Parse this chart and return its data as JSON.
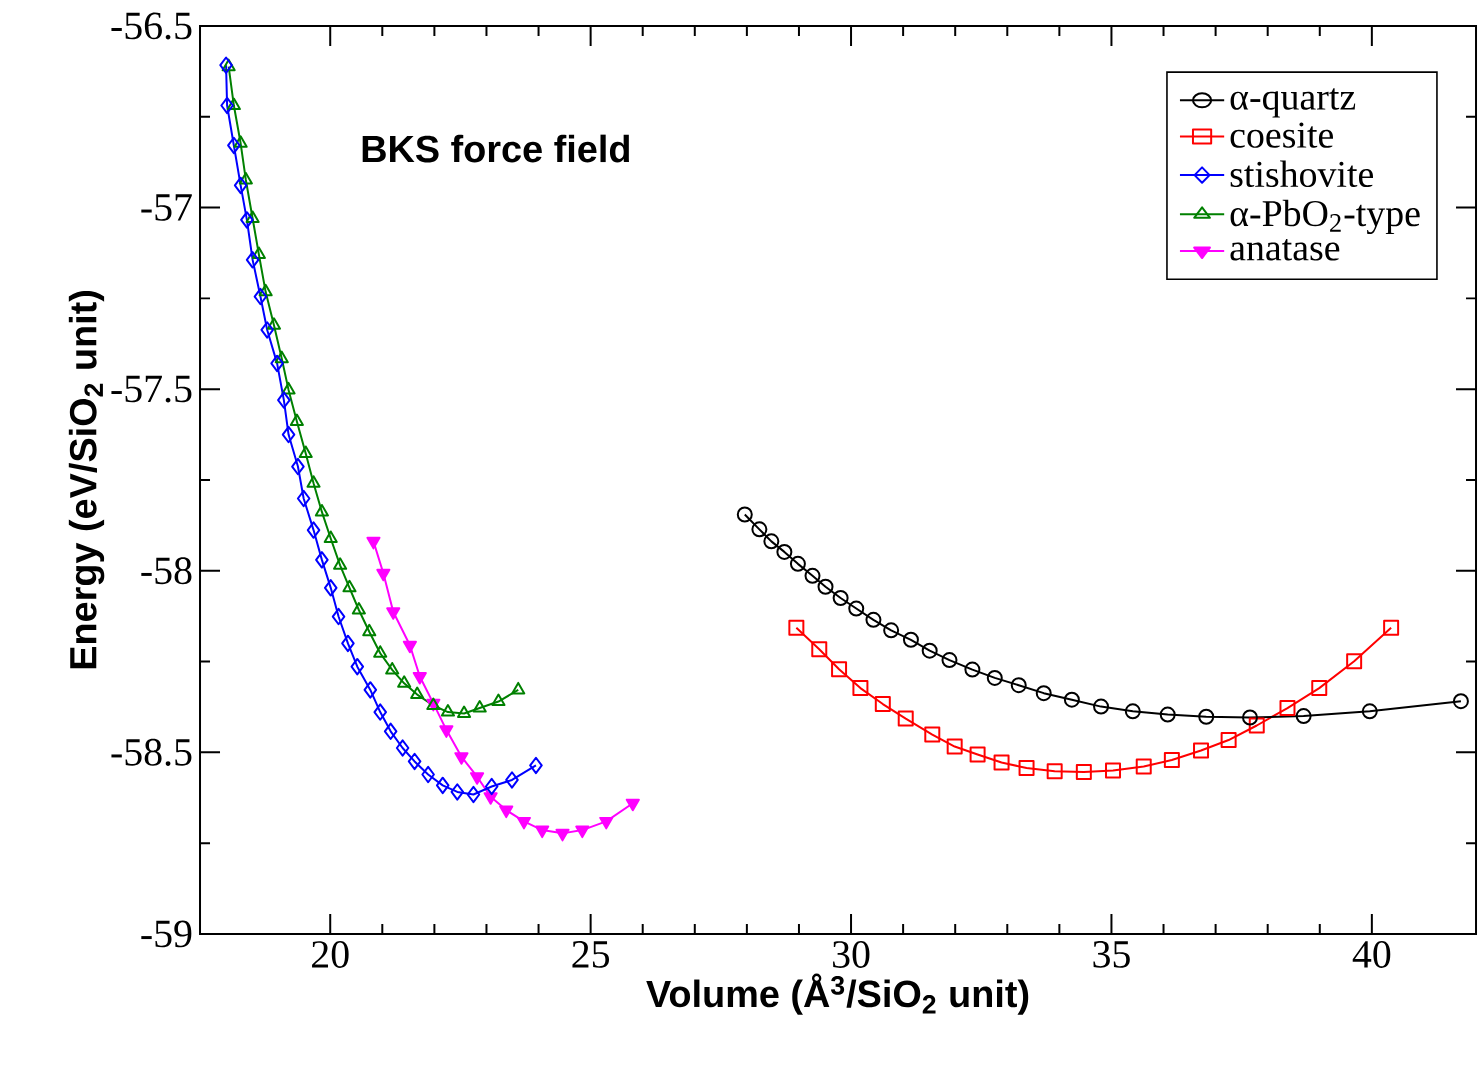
{
  "chart_data": {
    "type": "line",
    "xlabel": "Volume (Å$^{3}$/SiO$_{2}$ unit)",
    "ylabel": "Energy (eV/SiO$_{2}$ unit)",
    "annotations": [
      "BKS force field"
    ],
    "xlim": [
      17.5,
      42
    ],
    "xticks": [
      20,
      25,
      30,
      35,
      40
    ],
    "ylim": [
      -59,
      -56.5
    ],
    "yticks": [
      -59,
      -58.5,
      -58,
      -57.5,
      -57,
      -56.5
    ],
    "legend": "top right",
    "series": [
      {
        "name": "α-quartz",
        "color": "#000000",
        "marker": "circle",
        "x": [
          27.96,
          28.24,
          28.47,
          28.72,
          28.98,
          29.26,
          29.51,
          29.8,
          30.1,
          30.43,
          30.77,
          31.15,
          31.51,
          31.89,
          32.33,
          32.76,
          33.22,
          33.7,
          34.24,
          34.8,
          35.41,
          36.08,
          36.82,
          37.66,
          38.69,
          39.96,
          41.71
        ],
        "values": [
          -57.845,
          -57.886,
          -57.919,
          -57.948,
          -57.981,
          -58.014,
          -58.044,
          -58.075,
          -58.104,
          -58.135,
          -58.164,
          -58.19,
          -58.22,
          -58.246,
          -58.272,
          -58.295,
          -58.315,
          -58.337,
          -58.355,
          -58.374,
          -58.387,
          -58.396,
          -58.402,
          -58.404,
          -58.4,
          -58.387,
          -58.359
        ]
      },
      {
        "name": "coesite",
        "color": "#ff0000",
        "marker": "square",
        "x": [
          28.95,
          29.39,
          29.77,
          30.18,
          30.61,
          31.05,
          31.56,
          31.99,
          32.43,
          32.89,
          33.37,
          33.91,
          34.47,
          35.03,
          35.62,
          36.16,
          36.72,
          37.25,
          37.79,
          38.38,
          38.99,
          39.66,
          40.37
        ],
        "values": [
          -58.157,
          -58.216,
          -58.271,
          -58.323,
          -58.367,
          -58.407,
          -58.451,
          -58.484,
          -58.506,
          -58.528,
          -58.543,
          -58.552,
          -58.554,
          -58.55,
          -58.539,
          -58.521,
          -58.495,
          -58.466,
          -58.426,
          -58.378,
          -58.323,
          -58.249,
          -58.157
        ]
      },
      {
        "name": "stishovite",
        "color": "#0000ff",
        "marker": "diamond",
        "x": [
          18.0,
          18.02,
          18.15,
          18.28,
          18.4,
          18.51,
          18.66,
          18.79,
          18.98,
          19.11,
          19.2,
          19.38,
          19.49,
          19.68,
          19.84,
          20.01,
          20.16,
          20.34,
          20.52,
          20.77,
          20.96,
          21.16,
          21.39,
          21.62,
          21.88,
          22.16,
          22.44,
          22.75,
          23.1,
          23.49,
          23.95
        ],
        "values": [
          -56.608,
          -56.719,
          -56.829,
          -56.939,
          -57.034,
          -57.144,
          -57.245,
          -57.337,
          -57.429,
          -57.53,
          -57.625,
          -57.713,
          -57.801,
          -57.888,
          -57.97,
          -58.047,
          -58.126,
          -58.2,
          -58.264,
          -58.328,
          -58.389,
          -58.442,
          -58.488,
          -58.525,
          -58.561,
          -58.591,
          -58.609,
          -58.616,
          -58.594,
          -58.576,
          -58.536
        ]
      },
      {
        "name": "α-PbO$_{2}$-type",
        "color": "#008000",
        "marker": "triangle",
        "x": [
          18.05,
          18.15,
          18.28,
          18.38,
          18.51,
          18.63,
          18.76,
          18.92,
          19.07,
          19.2,
          19.36,
          19.53,
          19.68,
          19.84,
          20.01,
          20.19,
          20.37,
          20.55,
          20.75,
          20.96,
          21.19,
          21.42,
          21.67,
          21.98,
          22.26,
          22.57,
          22.87,
          23.23,
          23.61
        ],
        "values": [
          -56.612,
          -56.719,
          -56.823,
          -56.924,
          -57.03,
          -57.129,
          -57.232,
          -57.324,
          -57.416,
          -57.502,
          -57.589,
          -57.677,
          -57.759,
          -57.838,
          -57.911,
          -57.985,
          -58.047,
          -58.108,
          -58.168,
          -58.227,
          -58.273,
          -58.31,
          -58.341,
          -58.371,
          -58.389,
          -58.393,
          -58.378,
          -58.36,
          -58.328
        ]
      },
      {
        "name": "anatase",
        "color": "#ff00ff",
        "marker": "triangle-down",
        "x": [
          20.83,
          21.02,
          21.21,
          21.53,
          21.72,
          21.98,
          22.23,
          22.52,
          22.82,
          23.08,
          23.38,
          23.72,
          24.07,
          24.46,
          24.84,
          25.3,
          25.81
        ],
        "values": [
          -57.919,
          -58.007,
          -58.113,
          -58.205,
          -58.291,
          -58.365,
          -58.438,
          -58.512,
          -58.567,
          -58.622,
          -58.659,
          -58.69,
          -58.714,
          -58.723,
          -58.714,
          -58.69,
          -58.64
        ]
      }
    ]
  }
}
